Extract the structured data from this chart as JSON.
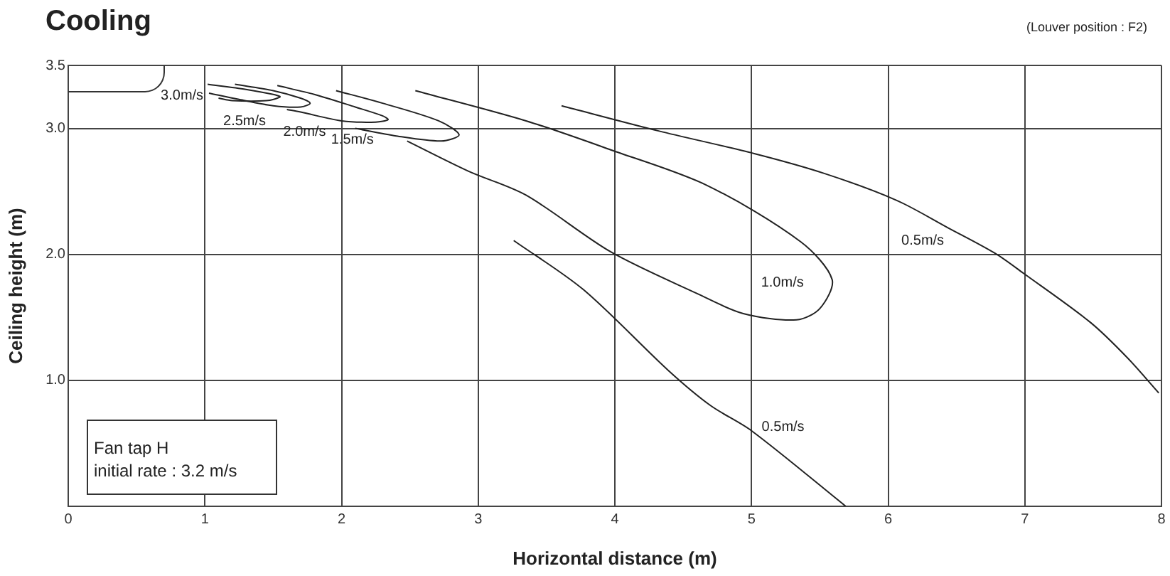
{
  "chart_data": {
    "type": "line",
    "title": "Cooling",
    "subtitle": "(Louver position : F2)",
    "xlabel": "Horizontal distance (m)",
    "ylabel": "Ceiling height (m)",
    "annotations": [
      "Fan tap H",
      "initial rate : 3.2 m/s"
    ],
    "xlim": [
      0,
      8
    ],
    "xticks": [
      0,
      1,
      2,
      3,
      4,
      5,
      6,
      7,
      8
    ],
    "ylim": [
      0,
      3.5
    ],
    "yticks": [
      {
        "value": 1,
        "label": "1.0"
      },
      {
        "value": 2,
        "label": "2.0"
      },
      {
        "value": 3,
        "label": "3.0"
      },
      {
        "value": 3.5,
        "label": "3.5"
      }
    ],
    "grid": true,
    "legend": false,
    "marker": "none",
    "line_style": "solid",
    "series": [
      {
        "name": "3.0m/s",
        "color": "#222222",
        "x": [
          1.02,
          1.3,
          1.5,
          1.55,
          1.45,
          1.2,
          1.1
        ],
        "values": [
          3.35,
          3.31,
          3.27,
          3.25,
          3.22,
          3.22,
          3.24
        ]
      },
      {
        "name": "2.5m/s",
        "color": "#222222",
        "x": [
          1.22,
          1.5,
          1.7,
          1.77,
          1.7,
          1.5,
          1.25,
          1.03
        ],
        "values": [
          3.35,
          3.3,
          3.24,
          3.2,
          3.17,
          3.18,
          3.23,
          3.28
        ]
      },
      {
        "name": "2.0m/s",
        "color": "#222222",
        "x": [
          1.53,
          1.8,
          2.1,
          2.3,
          2.34,
          2.25,
          2.0,
          1.7,
          1.6
        ],
        "values": [
          3.34,
          3.27,
          3.17,
          3.1,
          3.07,
          3.05,
          3.06,
          3.13,
          3.15
        ]
      },
      {
        "name": "1.5m/s",
        "color": "#222222",
        "x": [
          1.96,
          2.3,
          2.71,
          2.86,
          2.73,
          2.4,
          2.1
        ],
        "values": [
          3.3,
          3.2,
          3.06,
          2.95,
          2.9,
          2.94,
          3.0
        ]
      },
      {
        "name": "1.0m/s",
        "color": "#222222",
        "x": [
          2.54,
          3.35,
          3.97,
          4.67,
          5.36,
          5.59,
          5.5,
          5.33,
          4.94,
          4.6,
          3.97,
          3.35,
          2.93,
          2.48
        ],
        "values": [
          3.3,
          3.06,
          2.83,
          2.55,
          2.1,
          1.8,
          1.57,
          1.48,
          1.53,
          1.69,
          2.02,
          2.47,
          2.66,
          2.9
        ]
      },
      {
        "name": "0.5m/s",
        "color": "#222222",
        "x": [
          3.61,
          4.32,
          5.02,
          5.54,
          6.06,
          6.44,
          6.78,
          6.99,
          7.48,
          7.75,
          7.98
        ],
        "values": [
          3.18,
          2.98,
          2.8,
          2.64,
          2.43,
          2.21,
          2.01,
          1.85,
          1.46,
          1.18,
          0.9
        ]
      },
      {
        "name": "0.5m/s",
        "color": "#222222",
        "x": [
          3.26,
          3.77,
          4.39,
          4.7,
          5.0,
          5.69
        ],
        "values": [
          2.11,
          1.72,
          1.08,
          0.8,
          0.6,
          0
        ]
      }
    ]
  }
}
